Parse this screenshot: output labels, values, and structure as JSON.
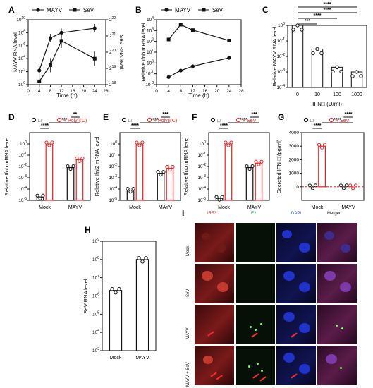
{
  "panels": {
    "A": {
      "label": "A",
      "legend": [
        "MAYV",
        "SeV"
      ],
      "xlabel": "Time (h)",
      "ylabel_left": "MAYV RNA level",
      "ylabel_right": "SeV RNA level",
      "xticks": [
        "0",
        "4",
        "8",
        "12",
        "16",
        "20",
        "24",
        "28"
      ],
      "yticks_left": [
        "10^0",
        "10^2",
        "10^4",
        "10^6",
        "10^8",
        "10^10"
      ],
      "yticks_right": [
        "2^18",
        "2^19",
        "2^20",
        "2^21",
        "2^22"
      ]
    },
    "B": {
      "label": "B",
      "legend": [
        "MAYV",
        "SeV"
      ],
      "xlabel": "Time (h)",
      "ylabel": "Relative Ifnb mRNA level",
      "xticks": [
        "0",
        "4",
        "8",
        "12",
        "16",
        "20",
        "24",
        "28"
      ],
      "yticks": [
        "10^-2",
        "10^-1",
        "10^0",
        "10^1",
        "10^2",
        "10^3",
        "10^4"
      ]
    },
    "C": {
      "label": "C",
      "xlabel": "IFN□ (U/ml)",
      "ylabel": "Relative MAYV RNA level",
      "categories": [
        "0",
        "10",
        "100",
        "1000"
      ],
      "sig": [
        "***",
        "****",
        "****",
        "****"
      ]
    },
    "D": {
      "label": "D",
      "legend": [
        "□",
        "+ Poly(I:C)"
      ],
      "ylabel": "Relative Ifnb mRNA level",
      "categories": [
        "Mock",
        "MAYV"
      ],
      "sig": [
        "****",
        "***",
        "**"
      ]
    },
    "E": {
      "label": "E",
      "legend": [
        "□",
        "+ Poly(I:C)"
      ],
      "ylabel": "Relative Ifnl2 mRNA level",
      "categories": [
        "Mock",
        "MAYV"
      ],
      "sig": [
        "****",
        "****",
        "***"
      ]
    },
    "F": {
      "label": "F",
      "legend": [
        "□",
        "+ SeV"
      ],
      "ylabel": "Relative Ifnb mRNA level",
      "categories": [
        "Mock",
        "MAYV"
      ],
      "sig": [
        "****",
        "****",
        "***"
      ]
    },
    "G": {
      "label": "G",
      "legend": [
        "□",
        "+ SeV"
      ],
      "ylabel": "Secreted IFN-□ (pg/ml)",
      "categories": [
        "Mock",
        "MAYV"
      ],
      "sig": [
        "****",
        "****",
        "****"
      ]
    },
    "H": {
      "label": "H",
      "ylabel": "SeV RNA level",
      "categories": [
        "Mock",
        "MAYV"
      ]
    },
    "I": {
      "label": "I",
      "cols": [
        "IRF3",
        "E2",
        "DAPI",
        "Merged"
      ],
      "rows": [
        "Mock",
        "SeV",
        "MAYV",
        "MAYV + SeV"
      ]
    }
  },
  "colors": {
    "black": "#111111",
    "red": "#ff1a1a",
    "gray": "#9a9a9a"
  },
  "chart_data": [
    {
      "panel": "A",
      "type": "line",
      "x": [
        4,
        8,
        12,
        24
      ],
      "series": [
        {
          "name": "MAYV",
          "axis": "left",
          "values": [
            150,
            15000000.0,
            100000000.0,
            500000000.0
          ]
        },
        {
          "name": "SeV",
          "axis": "right",
          "values": [
            18.2,
            19.2,
            20.7,
            19.6
          ]
        }
      ],
      "xlim": [
        0,
        28
      ],
      "ylim_left": [
        1,
        10000000000.0
      ],
      "ylim_right": [
        18,
        22
      ],
      "xlabel": "Time (h)",
      "ylabel_left": "MAYV RNA level",
      "ylabel_right": "SeV RNA level"
    },
    {
      "panel": "B",
      "type": "line",
      "x": [
        4,
        8,
        12,
        24
      ],
      "series": [
        {
          "name": "MAYV",
          "values": [
            0.05,
            0.2,
            0.5,
            3
          ]
        },
        {
          "name": "SeV",
          "values": [
            150,
            3500,
            1100,
            120
          ]
        }
      ],
      "xlim": [
        0,
        28
      ],
      "ylim": [
        0.01,
        10000
      ],
      "xlabel": "Time (h)",
      "ylabel": "Relative Ifnb mRNA level"
    },
    {
      "panel": "C",
      "type": "bar",
      "categories": [
        "0",
        "10",
        "100",
        "1000"
      ],
      "values": [
        1,
        0.03,
        0.002,
        0.001
      ],
      "ylim": [
        0.0001,
        1
      ],
      "xlabel": "IFN□ (U/ml)",
      "ylabel": "Relative MAYV RNA level"
    },
    {
      "panel": "D",
      "type": "bar",
      "categories": [
        "Mock",
        "MAYV"
      ],
      "series": [
        {
          "name": "□",
          "values": [
            2e-05,
            0.008
          ]
        },
        {
          "name": "+ Poly(I:C)",
          "values": [
            1.0,
            0.04
          ]
        }
      ],
      "ylim": [
        1e-05,
        10
      ],
      "ylabel": "Relative Ifnb mRNA level"
    },
    {
      "panel": "E",
      "type": "bar",
      "categories": [
        "Mock",
        "MAYV"
      ],
      "series": [
        {
          "name": "□",
          "values": [
            8e-05,
            0.0025
          ]
        },
        {
          "name": "+ Poly(I:C)",
          "values": [
            1.0,
            0.007
          ]
        }
      ],
      "ylim": [
        1e-05,
        10
      ],
      "ylabel": "Relative Ifnl2 mRNA level"
    },
    {
      "panel": "F",
      "type": "bar",
      "categories": [
        "Mock",
        "MAYV"
      ],
      "series": [
        {
          "name": "□",
          "values": [
            1.5e-05,
            0.008
          ]
        },
        {
          "name": "+ SeV",
          "values": [
            1.0,
            0.02
          ]
        }
      ],
      "ylim": [
        1e-05,
        10
      ],
      "ylabel": "Relative Ifnb mRNA level"
    },
    {
      "panel": "G",
      "type": "bar",
      "categories": [
        "Mock",
        "MAYV"
      ],
      "series": [
        {
          "name": "□",
          "values": [
            0,
            0
          ]
        },
        {
          "name": "+ SeV",
          "values": [
            3000,
            0
          ]
        }
      ],
      "ylim": [
        -1000,
        4000
      ],
      "ylabel": "Secreted IFN-□ (pg/ml)"
    },
    {
      "panel": "H",
      "type": "bar",
      "categories": [
        "Mock",
        "MAYV"
      ],
      "values": [
        2000000.0,
        100000000.0
      ],
      "ylim": [
        1000.0,
        1000000000.0
      ],
      "ylabel": "SeV RNA level"
    }
  ]
}
